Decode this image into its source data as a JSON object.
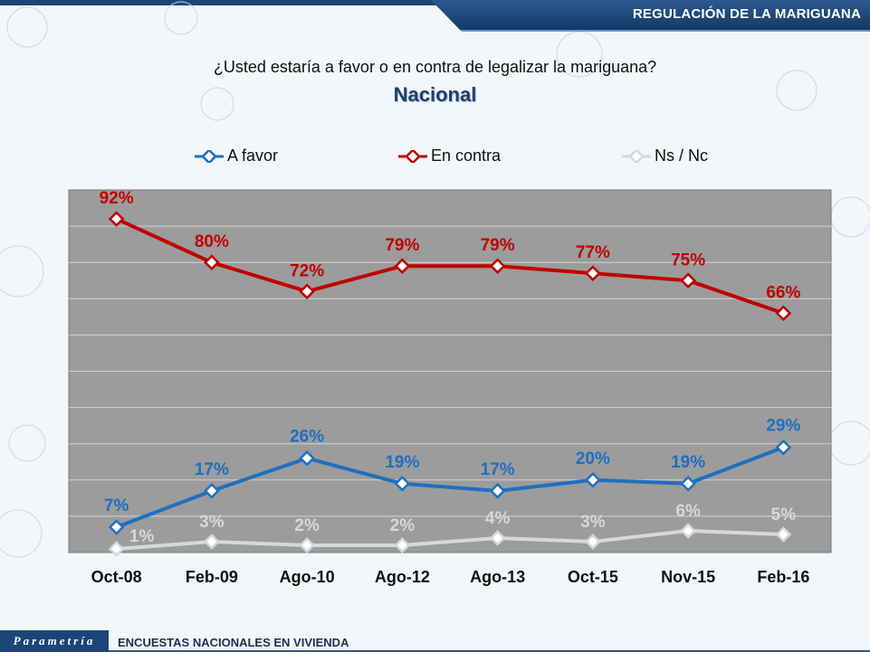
{
  "header": {
    "title": "REGULACIÓN DE LA MARIGUANA"
  },
  "question": "¿Usted estaría a favor o en contra de legalizar la mariguana?",
  "subtitle": "Nacional",
  "footer": {
    "logo": "Parametría",
    "text": "ENCUESTAS NACIONALES EN VIVIENDA"
  },
  "colors": {
    "favor": "#1f6fc0",
    "contra": "#c00000",
    "ns": "#d8d8d8",
    "plot_bg": "#9c9c9c"
  },
  "chart_data": {
    "type": "line",
    "title": "Nacional",
    "categories": [
      "Oct-08",
      "Feb-09",
      "Ago-10",
      "Ago-12",
      "Ago-13",
      "Oct-15",
      "Nov-15",
      "Feb-16"
    ],
    "ylim": [
      0,
      100
    ],
    "series": [
      {
        "name": "A favor",
        "values": [
          7,
          17,
          26,
          19,
          17,
          20,
          19,
          29
        ],
        "labels": [
          "7%",
          "17%",
          "26%",
          "19%",
          "17%",
          "20%",
          "19%",
          "29%"
        ]
      },
      {
        "name": "En contra",
        "values": [
          92,
          80,
          72,
          79,
          79,
          77,
          75,
          66
        ],
        "labels": [
          "92%",
          "80%",
          "72%",
          "79%",
          "79%",
          "77%",
          "75%",
          "66%"
        ]
      },
      {
        "name": "Ns / Nc",
        "values": [
          1,
          3,
          2,
          2,
          4,
          3,
          6,
          5
        ],
        "labels": [
          "1%",
          "3%",
          "2%",
          "2%",
          "4%",
          "3%",
          "6%",
          "5%"
        ]
      }
    ],
    "legend": "top"
  }
}
